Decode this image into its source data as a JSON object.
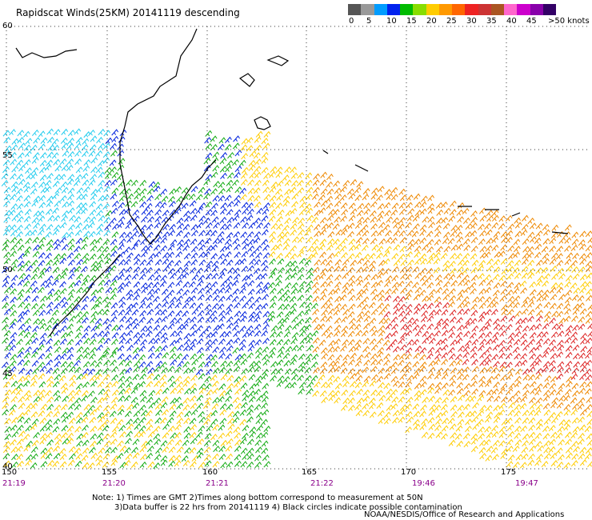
{
  "title": "Rapidscat Winds(25KM) 20141119 descending",
  "legend": {
    "colors": [
      "#555555",
      "#999999",
      "#009cff",
      "#0022ee",
      "#00bb00",
      "#88dd00",
      "#ffcc00",
      "#ff9900",
      "#ff6600",
      "#ee2222",
      "#cc3333",
      "#aa5522",
      "#ff66cc",
      "#cc00cc",
      "#8800aa",
      "#330066"
    ],
    "labels": [
      "0",
      "5",
      "10",
      "15",
      "20",
      "25",
      "30",
      "35",
      "40",
      "45",
      ">50 knots"
    ]
  },
  "lat_labels": [
    "60",
    "55",
    "50",
    "45",
    "40"
  ],
  "lon_labels": [
    "150",
    "155",
    "160",
    "165",
    "170",
    "175"
  ],
  "time_labels": [
    "21:19",
    "21:20",
    "21:21",
    "21:22",
    "19:46",
    "19:47"
  ],
  "notes": [
    "Note: 1) Times are GMT 2)Times along bottom correspond to measurement at 50N",
    "3)Data buffer is 22 hrs from 20141119 4) Black circles indicate possible contamination"
  ],
  "credit": "NOAA/NESDIS/Office of Research and Applications",
  "wind_colors": {
    "light_blue": "#22ccee",
    "blue": "#0022dd",
    "green": "#11aa11",
    "yellow": "#ffcc00",
    "orange": "#ee8800",
    "red": "#dd2222"
  }
}
